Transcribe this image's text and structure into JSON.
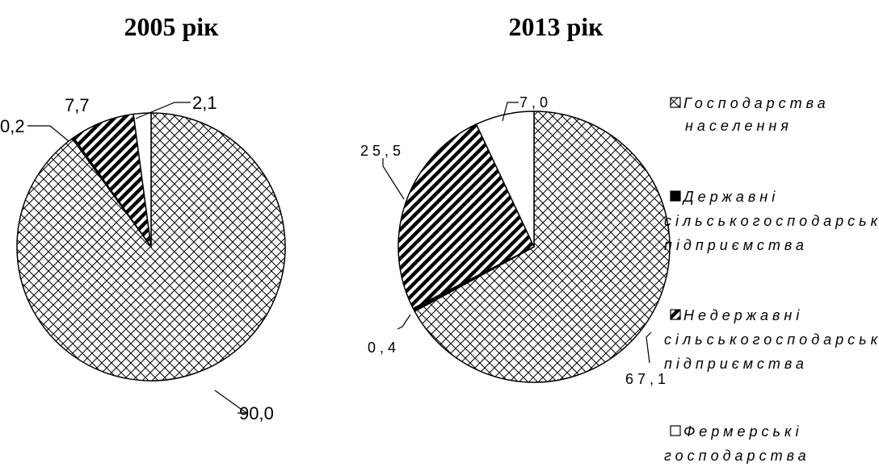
{
  "chart_data": [
    {
      "type": "pie",
      "title": "2005 рік",
      "categories": [
        "Господарства населення",
        "Державні сільськогосподарські підприємства",
        "Недержавні сільськогосподарські підприємства",
        "Фермерські господарства"
      ],
      "values": [
        90.0,
        0.2,
        7.7,
        2.1
      ],
      "labels": [
        "90,0",
        "0,2",
        "7,7",
        "2,1"
      ]
    },
    {
      "type": "pie",
      "title": "2013 рік",
      "categories": [
        "Господарства населення",
        "Державні сільськогосподарські підприємства",
        "Недержавні сільськогосподарські підприємства",
        "Фермерські господарства"
      ],
      "values": [
        67.1,
        0.4,
        25.5,
        7.0
      ],
      "labels": [
        "67,1",
        "0,4",
        "25,5",
        "7,0"
      ]
    }
  ],
  "legend": {
    "position": "right",
    "items": [
      {
        "lines": [
          "Господарства",
          "населення"
        ],
        "pattern": "crosshatch"
      },
      {
        "lines": [
          "Державні",
          "сільськогосподарські",
          "підприємства"
        ],
        "pattern": "solid-black"
      },
      {
        "lines": [
          "Недержавні",
          "сільськогосподарські",
          "підприємства"
        ],
        "pattern": "diagonal-stripes"
      },
      {
        "lines": [
          "Фермерські",
          "господарства"
        ],
        "pattern": "white"
      }
    ]
  },
  "colors": {
    "stroke": "#000000",
    "background": "#ffffff"
  }
}
